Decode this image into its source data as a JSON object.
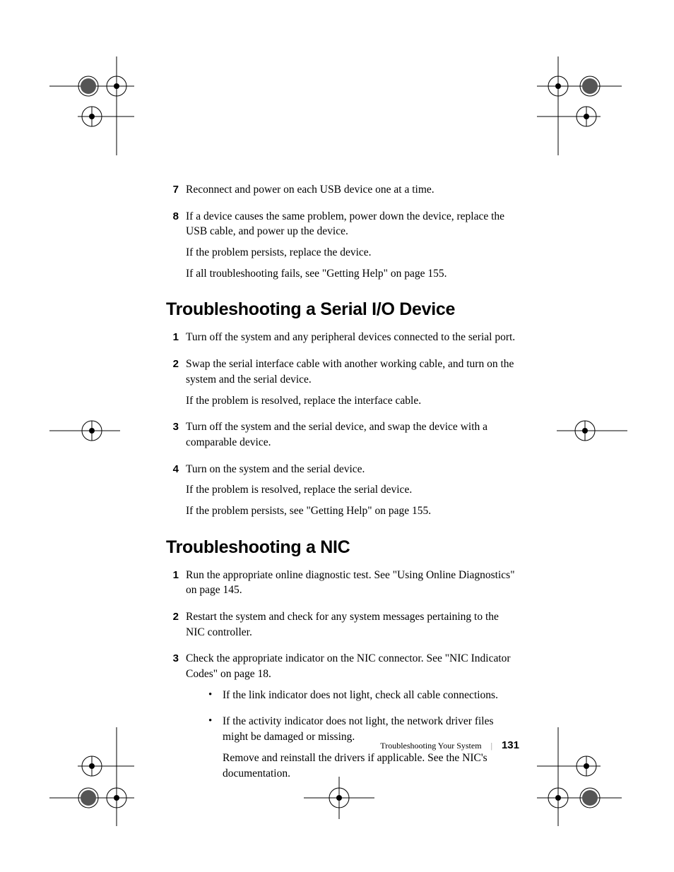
{
  "marks": {
    "stroke": "#000000",
    "stroke_width": 1,
    "dot_fill": "#555555"
  },
  "section1": {
    "steps": [
      {
        "n": "7",
        "paras": [
          "Reconnect and power on each USB device one at a time."
        ]
      },
      {
        "n": "8",
        "paras": [
          "If a device causes the same problem, power down the device, replace the USB cable, and power up the device.",
          "If the problem persists, replace the device.",
          "If all troubleshooting fails, see \"Getting Help\" on page 155."
        ]
      }
    ]
  },
  "heading1": "Troubleshooting a Serial I/O Device",
  "section2": {
    "steps": [
      {
        "n": "1",
        "paras": [
          "Turn off the system and any peripheral devices connected to the serial port."
        ]
      },
      {
        "n": "2",
        "paras": [
          "Swap the serial interface cable with another working cable, and turn on the system and the serial device.",
          "If the problem is resolved, replace the interface cable."
        ]
      },
      {
        "n": "3",
        "paras": [
          "Turn off the system and the serial device, and swap the device with a comparable device."
        ]
      },
      {
        "n": "4",
        "paras": [
          "Turn on the system and the serial device.",
          "If the problem is resolved, replace the serial device.",
          "If the problem persists, see \"Getting Help\" on page 155."
        ]
      }
    ]
  },
  "heading2": "Troubleshooting a NIC",
  "section3": {
    "steps": [
      {
        "n": "1",
        "paras": [
          "Run the appropriate online diagnostic test. See \"Using Online Diagnostics\" on page 145."
        ]
      },
      {
        "n": "2",
        "paras": [
          "Restart the system and check for any system messages pertaining to the NIC controller."
        ]
      },
      {
        "n": "3",
        "paras": [
          "Check the appropriate indicator on the NIC connector. See \"NIC Indicator Codes\" on page 18."
        ],
        "bullets": [
          {
            "paras": [
              "If the link indicator does not light, check all cable connections."
            ]
          },
          {
            "paras": [
              "If the activity indicator does not light, the network driver files might be damaged or missing.",
              "Remove and reinstall the drivers if applicable. See the NIC's documentation."
            ]
          }
        ]
      }
    ]
  },
  "footer": {
    "title": "Troubleshooting Your System",
    "sep": "|",
    "page": "131"
  }
}
